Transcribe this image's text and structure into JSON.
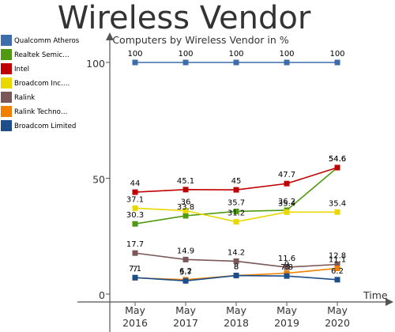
{
  "title": "Wireless Vendor",
  "subtitle": "Computers by Wireless Vendor in %",
  "chart_data": {
    "type": "line",
    "title": "Wireless Vendor",
    "subtitle": "Computers by Wireless Vendor in %",
    "xlabel": "Time",
    "ylabel": "",
    "x": [
      "May 2016",
      "May 2017",
      "May 2018",
      "May 2019",
      "May 2020"
    ],
    "x_tick_labels": [
      [
        "May",
        "2016"
      ],
      [
        "May",
        "2017"
      ],
      [
        "May",
        "2018"
      ],
      [
        "May",
        "2019"
      ],
      [
        "May",
        "2020"
      ]
    ],
    "y_ticks": [
      0,
      50,
      100
    ],
    "ylim": [
      -10,
      110
    ],
    "grid": false,
    "legend_position": "left",
    "series": [
      {
        "name": "Qualcomm Atheros",
        "legend_label": "Qualcomm Atheros",
        "color": "#3d6daa",
        "values": [
          100,
          100,
          100,
          100,
          100
        ],
        "labels": [
          "100",
          "100",
          "100",
          "100",
          "100"
        ]
      },
      {
        "name": "Realtek Semiconductor",
        "legend_label": "Realtek Semic…",
        "color": "#4f9a10",
        "values": [
          30.3,
          33.8,
          35.7,
          36.2,
          54.6
        ],
        "labels": [
          "30.3",
          "33.8",
          "35.7",
          "36.2",
          "54.6"
        ]
      },
      {
        "name": "Intel",
        "legend_label": "Intel",
        "color": "#c00000",
        "values": [
          44,
          45.1,
          45,
          47.7,
          54.6
        ],
        "labels": [
          "44",
          "45.1",
          "45",
          "47.7",
          "54.6"
        ]
      },
      {
        "name": "Broadcom Inc.",
        "legend_label": "Broadcom Inc.…",
        "color": "#e8d800",
        "values": [
          37.1,
          36,
          31.2,
          35.4,
          35.4
        ],
        "labels": [
          "37.1",
          "36",
          "31.2",
          "35.4",
          "35.4"
        ]
      },
      {
        "name": "Ralink",
        "legend_label": "Ralink",
        "color": "#7a5858",
        "values": [
          17.7,
          14.9,
          14.2,
          11.6,
          12.8
        ],
        "labels": [
          "17.7",
          "14.9",
          "14.2",
          "11.6",
          "12.8"
        ]
      },
      {
        "name": "Ralink Technology",
        "legend_label": "Ralink Techno…",
        "color": "#f08000",
        "values": [
          7,
          6.2,
          8,
          9,
          11.1
        ],
        "labels": [
          "7",
          "6.2",
          "8",
          "9",
          "11.1"
        ]
      },
      {
        "name": "Broadcom Limited",
        "legend_label": "Broadcom Limited",
        "color": "#1c4e8a",
        "values": [
          7.1,
          5.7,
          8,
          7.8,
          6.2
        ],
        "labels": [
          "7.1",
          "5.7",
          "8",
          "7.8",
          "6.2"
        ]
      }
    ]
  }
}
